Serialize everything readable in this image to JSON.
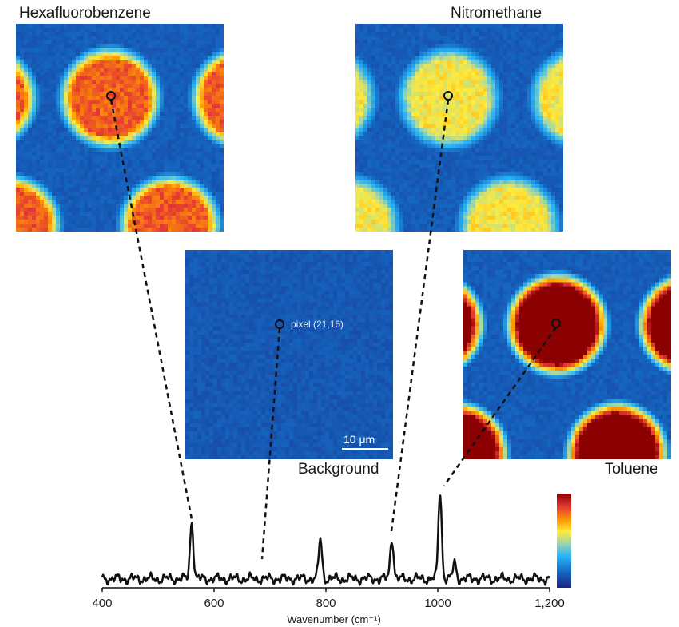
{
  "maps": [
    {
      "id": "hexafluorobenzene",
      "label": "Hexafluorobenzene",
      "intensity": 0.72
    },
    {
      "id": "nitromethane",
      "label": "Nitromethane",
      "intensity": 0.48
    },
    {
      "id": "background",
      "label": "Background",
      "intensity": 0.05
    },
    {
      "id": "toluene",
      "label": "Toluene",
      "intensity": 1.0
    }
  ],
  "annotations": {
    "pixel_label": "pixel (21,16)",
    "scale_bar_label": "10 μm"
  },
  "colormap": [
    "#1a237e",
    "#1565c0",
    "#29b6f6",
    "#a5d6a7",
    "#ffeb3b",
    "#ff9800",
    "#e53935",
    "#8b0000"
  ],
  "chart_data": {
    "type": "line",
    "title": "",
    "xlabel": "Wavenumber (cm⁻¹)",
    "ylabel": "",
    "xlim": [
      400,
      1200
    ],
    "x_ticks": [
      "400",
      "600",
      "800",
      "1000",
      "1,200"
    ],
    "x_tick_values": [
      400,
      600,
      800,
      1000,
      1200
    ],
    "peaks": [
      {
        "x": 560,
        "height": 0.66,
        "species": "Hexafluorobenzene"
      },
      {
        "x": 790,
        "height": 0.45,
        "species": ""
      },
      {
        "x": 918,
        "height": 0.47,
        "species": "Nitromethane"
      },
      {
        "x": 1004,
        "height": 1.0,
        "species": "Toluene"
      },
      {
        "x": 1030,
        "height": 0.18,
        "species": ""
      }
    ],
    "background_marker_x": 690
  }
}
